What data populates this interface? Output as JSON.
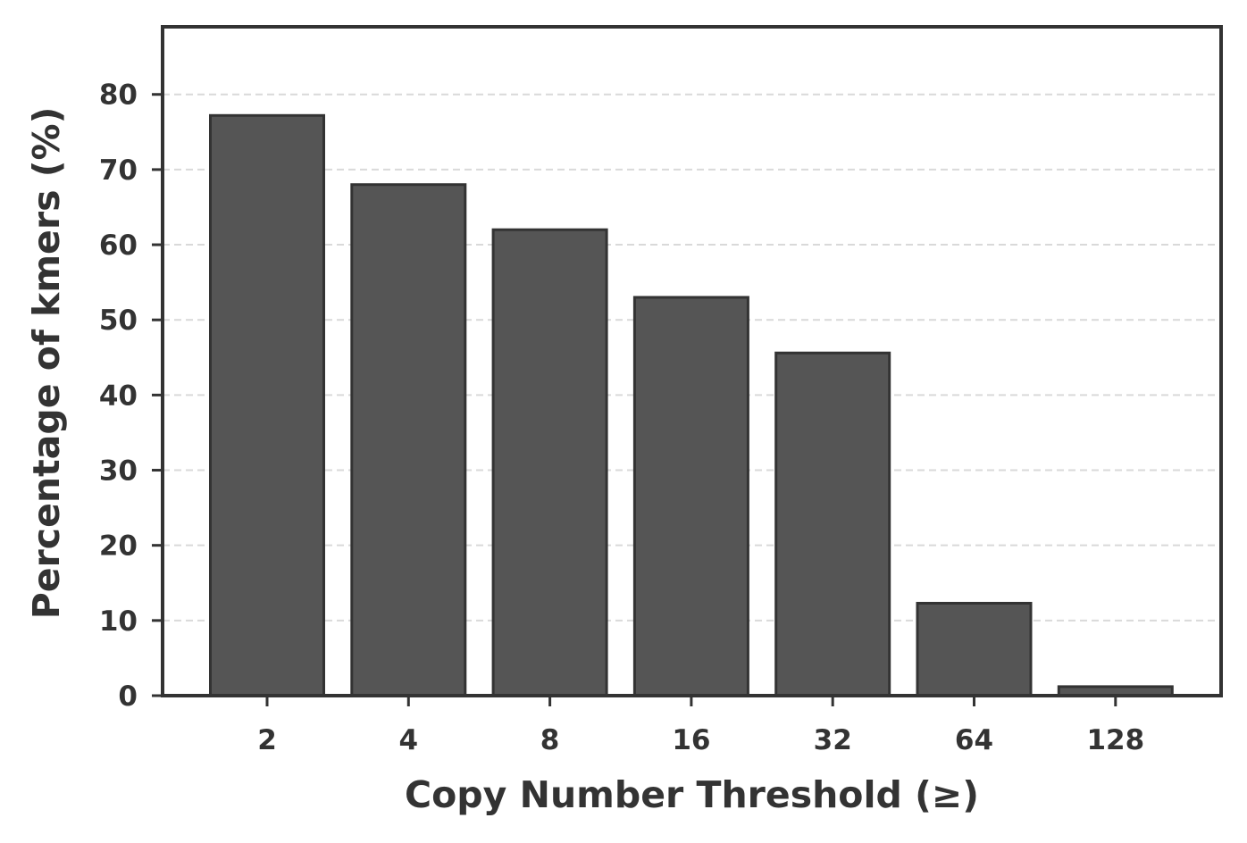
{
  "chart_data": {
    "type": "bar",
    "title": "",
    "xlabel": "Copy Number Threshold (≥)",
    "ylabel": "Percentage of kmers (%)",
    "categories": [
      "2",
      "4",
      "8",
      "16",
      "32",
      "64",
      "128"
    ],
    "values": [
      77.2,
      68.0,
      62.0,
      53.0,
      45.6,
      12.3,
      1.2
    ],
    "ylim": [
      0,
      89
    ],
    "yticks": [
      0,
      10,
      20,
      30,
      40,
      50,
      60,
      70,
      80
    ],
    "ytick_labels": [
      "0",
      "10",
      "20",
      "30",
      "40",
      "50",
      "60",
      "70",
      "80"
    ],
    "grid": "horizontal dashed",
    "legend": "none",
    "colors": {
      "bar_fill": "#555555",
      "bar_edge": "#333333",
      "axes": "#333333",
      "grid": "#d9d9d9",
      "text": "#333333"
    }
  }
}
